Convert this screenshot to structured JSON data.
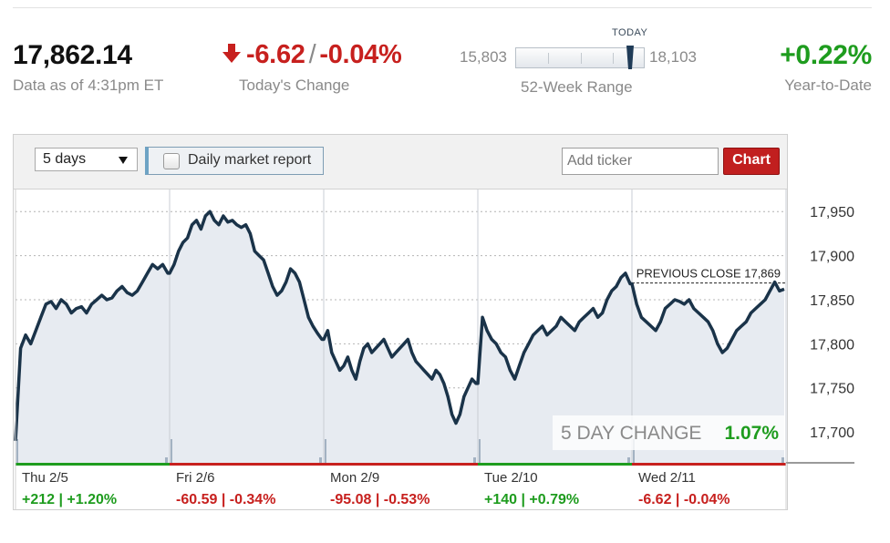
{
  "header": {
    "last_price": "17,862.14",
    "as_of": "Data as of 4:31pm ET",
    "change_points": "-6.62",
    "change_percent": "-0.04%",
    "slash": "/",
    "change_label": "Today's Change",
    "range_low": "15,803",
    "range_high": "18,103",
    "range_today_label": "TODAY",
    "range_today_value": 17862.14,
    "range_label": "52-Week Range",
    "ytd": "+0.22%",
    "ytd_label": "Year-to-Date",
    "icon": "down-arrow-icon"
  },
  "toolbar": {
    "period": "5 days",
    "daily_report_label": "Daily market report",
    "daily_report_checked": false,
    "ticker_placeholder": "Add ticker",
    "chart_button": "Chart"
  },
  "colors": {
    "up": "#1e9c1e",
    "down": "#c7201e",
    "line": "#1a3349",
    "area": "#e7ebf1",
    "volume": "#a3b2c2"
  },
  "chart_data": {
    "type": "area",
    "ylim": [
      17665,
      17975
    ],
    "yticks": [
      "17,950",
      "17,900",
      "17,850",
      "17,800",
      "17,750",
      "17,700"
    ],
    "ytick_values": [
      17950,
      17900,
      17850,
      17800,
      17750,
      17700
    ],
    "previous_close": 17869,
    "previous_close_label": "PREVIOUS CLOSE 17,869",
    "five_day_change_label": "5 DAY CHANGE",
    "five_day_change_value": "1.07%",
    "days": [
      {
        "label": "Thu 2/5",
        "change": "+212 | +1.20%",
        "direction": "up",
        "values": [
          17690,
          17795,
          17810,
          17800,
          17815,
          17830,
          17845,
          17848,
          17840,
          17850,
          17845,
          17835,
          17840,
          17842,
          17835,
          17845,
          17850,
          17855,
          17850,
          17852,
          17860,
          17865,
          17858,
          17855,
          17860,
          17870,
          17880,
          17890,
          17885,
          17890,
          17880
        ]
      },
      {
        "label": "Fri 2/6",
        "change": "-60.59 | -0.34%",
        "direction": "down",
        "values": [
          17880,
          17890,
          17905,
          17915,
          17920,
          17935,
          17940,
          17930,
          17945,
          17950,
          17940,
          17935,
          17945,
          17938,
          17940,
          17935,
          17932,
          17935,
          17925,
          17905,
          17900,
          17895,
          17880,
          17865,
          17855,
          17860,
          17870,
          17885,
          17880,
          17870,
          17850,
          17830,
          17820,
          17812,
          17805
        ]
      },
      {
        "label": "Mon 2/9",
        "change": "-95.08 | -0.53%",
        "direction": "down",
        "values": [
          17805,
          17815,
          17790,
          17780,
          17770,
          17775,
          17785,
          17770,
          17760,
          17780,
          17795,
          17800,
          17790,
          17795,
          17800,
          17805,
          17795,
          17785,
          17790,
          17795,
          17800,
          17805,
          17790,
          17780,
          17775,
          17770,
          17765,
          17760,
          17770,
          17765,
          17755,
          17740,
          17720,
          17710,
          17720,
          17740,
          17750,
          17760,
          17755
        ]
      },
      {
        "label": "Tue 2/10",
        "change": "+140 | +0.79%",
        "direction": "up",
        "values": [
          17755,
          17830,
          17815,
          17805,
          17800,
          17790,
          17785,
          17770,
          17760,
          17775,
          17790,
          17800,
          17810,
          17815,
          17820,
          17810,
          17815,
          17820,
          17830,
          17825,
          17820,
          17815,
          17825,
          17830,
          17835,
          17840,
          17830,
          17835,
          17850,
          17860,
          17865,
          17875,
          17880,
          17868
        ]
      },
      {
        "label": "Wed 2/11",
        "change": "-6.62 | -0.04%",
        "direction": "down",
        "values": [
          17868,
          17845,
          17830,
          17825,
          17820,
          17815,
          17825,
          17840,
          17845,
          17850,
          17848,
          17845,
          17850,
          17840,
          17835,
          17830,
          17825,
          17815,
          17800,
          17790,
          17795,
          17805,
          17815,
          17820,
          17825,
          17835,
          17840,
          17845,
          17850,
          17860,
          17870,
          17860,
          17862
        ]
      }
    ]
  }
}
